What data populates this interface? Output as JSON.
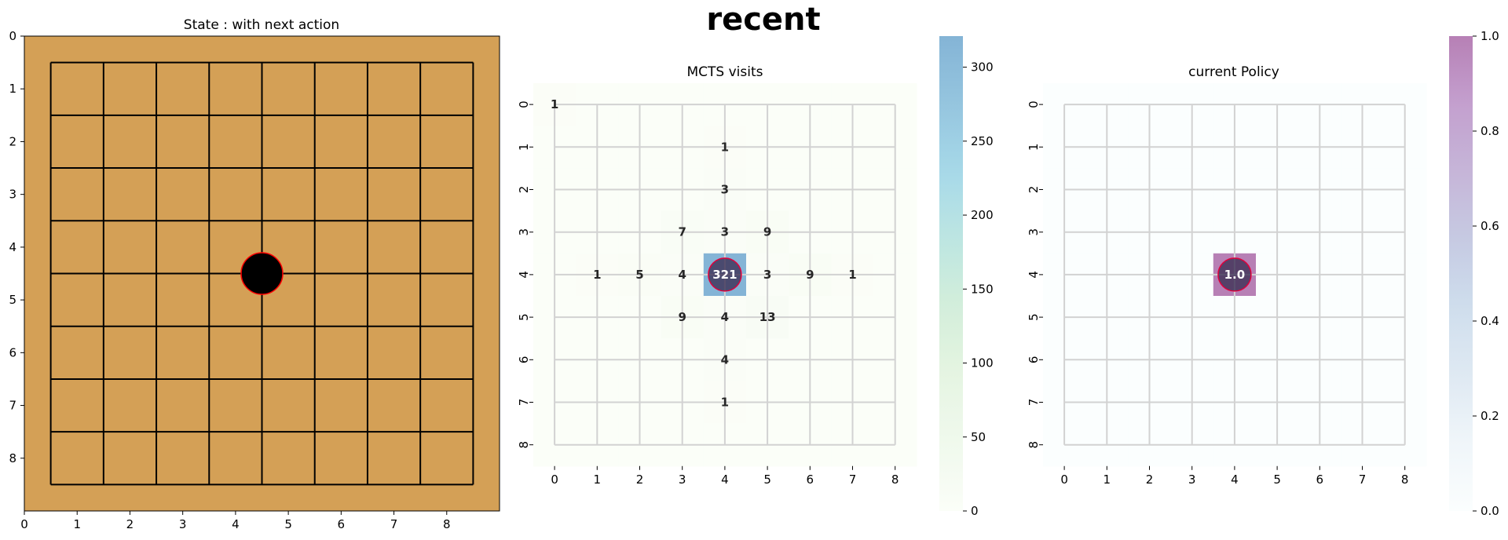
{
  "figure": {
    "suptitle": "recent"
  },
  "chart_data": [
    {
      "type": "board",
      "title": "State : with next action",
      "board_size": 9,
      "x_ticks": [
        "0",
        "1",
        "2",
        "3",
        "4",
        "5",
        "6",
        "7",
        "8"
      ],
      "y_ticks": [
        "0",
        "1",
        "2",
        "3",
        "4",
        "5",
        "6",
        "7",
        "8"
      ],
      "xlim": [
        0,
        9
      ],
      "ylim": [
        9,
        0
      ],
      "stones": [
        {
          "x": 4.5,
          "y": 4.5,
          "color": "black",
          "edge": "red"
        }
      ],
      "colors": {
        "board": "#d4a056",
        "line": "#000000",
        "stone": "#000000",
        "stone_edge": "#ff0000"
      }
    },
    {
      "type": "heatmap",
      "title": "MCTS visits",
      "x_ticks": [
        "0",
        "1",
        "2",
        "3",
        "4",
        "5",
        "6",
        "7",
        "8"
      ],
      "y_ticks": [
        "0",
        "1",
        "2",
        "3",
        "4",
        "5",
        "6",
        "7",
        "8"
      ],
      "cells": [
        {
          "row": 0,
          "col": 0,
          "value": 1
        },
        {
          "row": 1,
          "col": 4,
          "value": 1
        },
        {
          "row": 2,
          "col": 4,
          "value": 3
        },
        {
          "row": 3,
          "col": 3,
          "value": 7
        },
        {
          "row": 3,
          "col": 4,
          "value": 3
        },
        {
          "row": 3,
          "col": 5,
          "value": 9
        },
        {
          "row": 4,
          "col": 1,
          "value": 1
        },
        {
          "row": 4,
          "col": 2,
          "value": 5
        },
        {
          "row": 4,
          "col": 3,
          "value": 4
        },
        {
          "row": 4,
          "col": 4,
          "value": 321
        },
        {
          "row": 4,
          "col": 5,
          "value": 3
        },
        {
          "row": 4,
          "col": 6,
          "value": 9
        },
        {
          "row": 4,
          "col": 7,
          "value": 1
        },
        {
          "row": 5,
          "col": 3,
          "value": 9
        },
        {
          "row": 5,
          "col": 4,
          "value": 4
        },
        {
          "row": 5,
          "col": 5,
          "value": 13
        },
        {
          "row": 6,
          "col": 4,
          "value": 4
        },
        {
          "row": 7,
          "col": 4,
          "value": 1
        }
      ],
      "value_labels": [
        {
          "row": 0,
          "col": 0,
          "text": "1"
        },
        {
          "row": 1,
          "col": 4,
          "text": "1"
        },
        {
          "row": 2,
          "col": 4,
          "text": "3"
        },
        {
          "row": 3,
          "col": 3,
          "text": "7"
        },
        {
          "row": 3,
          "col": 4,
          "text": "3"
        },
        {
          "row": 3,
          "col": 5,
          "text": "9"
        },
        {
          "row": 4,
          "col": 1,
          "text": "1"
        },
        {
          "row": 4,
          "col": 2,
          "text": "5"
        },
        {
          "row": 4,
          "col": 3,
          "text": "4"
        },
        {
          "row": 4,
          "col": 4,
          "text": "321"
        },
        {
          "row": 4,
          "col": 5,
          "text": "3"
        },
        {
          "row": 4,
          "col": 6,
          "text": "9"
        },
        {
          "row": 4,
          "col": 7,
          "text": "1"
        },
        {
          "row": 5,
          "col": 3,
          "text": "9"
        },
        {
          "row": 5,
          "col": 4,
          "text": "4"
        },
        {
          "row": 5,
          "col": 5,
          "text": "13"
        },
        {
          "row": 6,
          "col": 4,
          "text": "4"
        },
        {
          "row": 7,
          "col": 4,
          "text": "1"
        }
      ],
      "marker": {
        "row": 4,
        "col": 4
      },
      "colorbar": {
        "min": 0,
        "max": 321,
        "ticks": [
          0,
          50,
          100,
          150,
          200,
          250,
          300
        ],
        "tick_labels": [
          "0",
          "50",
          "100",
          "150",
          "200",
          "250",
          "300"
        ],
        "colors": [
          "#f7fcf0",
          "#e0f3db",
          "#ccebc5",
          "#a8ddb5",
          "#7bccc4",
          "#4eb3d3",
          "#2b8cbe",
          "#0868ac"
        ]
      },
      "colormap_alpha": 0.5,
      "grid": true
    },
    {
      "type": "heatmap",
      "title": "current Policy",
      "x_ticks": [
        "0",
        "1",
        "2",
        "3",
        "4",
        "5",
        "6",
        "7",
        "8"
      ],
      "y_ticks": [
        "0",
        "1",
        "2",
        "3",
        "4",
        "5",
        "6",
        "7",
        "8"
      ],
      "cells": [
        {
          "row": 4,
          "col": 4,
          "value": 1.0
        }
      ],
      "value_labels": [
        {
          "row": 4,
          "col": 4,
          "text": "1.0"
        }
      ],
      "marker": {
        "row": 4,
        "col": 4
      },
      "colorbar": {
        "min": 0.0,
        "max": 1.0,
        "ticks": [
          0.0,
          0.2,
          0.4,
          0.6,
          0.8,
          1.0
        ],
        "tick_labels": [
          "0.0",
          "0.2",
          "0.4",
          "0.6",
          "0.8",
          "1.0"
        ],
        "colors": [
          "#f7fcfd",
          "#e0ecf4",
          "#bfd3e6",
          "#9ebcda",
          "#8c96c6",
          "#8c6bb1",
          "#88419d",
          "#6e016b"
        ]
      },
      "colormap_alpha": 0.5,
      "grid": true
    }
  ]
}
